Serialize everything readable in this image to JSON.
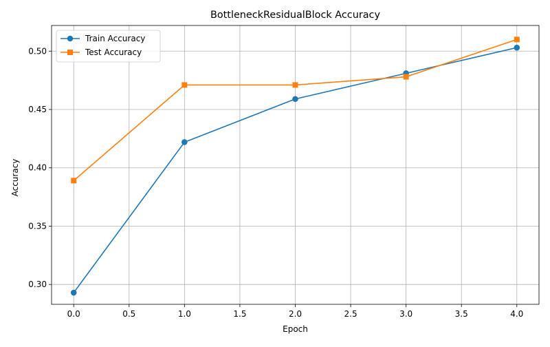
{
  "chart_data": {
    "type": "line",
    "title": "BottleneckResidualBlock Accuracy",
    "xlabel": "Epoch",
    "ylabel": "Accuracy",
    "xlim": [
      -0.2,
      4.2
    ],
    "ylim": [
      0.283,
      0.522
    ],
    "xticks": [
      0.0,
      0.5,
      1.0,
      1.5,
      2.0,
      2.5,
      3.0,
      3.5,
      4.0
    ],
    "xtick_labels": [
      "0.0",
      "0.5",
      "1.0",
      "1.5",
      "2.0",
      "2.5",
      "3.0",
      "3.5",
      "4.0"
    ],
    "yticks": [
      0.3,
      0.35,
      0.4,
      0.45,
      0.5
    ],
    "ytick_labels": [
      "0.30",
      "0.35",
      "0.40",
      "0.45",
      "0.50"
    ],
    "grid": true,
    "legend_position": "top-left",
    "x": [
      0,
      1,
      2,
      3,
      4
    ],
    "series": [
      {
        "name": "Train Accuracy",
        "values": [
          0.293,
          0.422,
          0.459,
          0.481,
          0.503
        ],
        "color": "#1f77b4",
        "marker": "circle"
      },
      {
        "name": "Test Accuracy",
        "values": [
          0.389,
          0.471,
          0.471,
          0.478,
          0.51
        ],
        "color": "#ff7f0e",
        "marker": "square"
      }
    ]
  }
}
